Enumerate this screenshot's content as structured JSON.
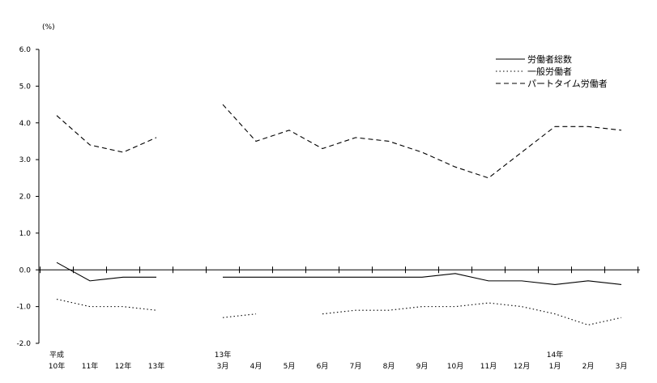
{
  "chart_data": {
    "type": "line",
    "ylabel": "(%)",
    "ylim": [
      -2.0,
      6.0
    ],
    "yticks": [
      "6.0",
      "5.0",
      "4.0",
      "3.0",
      "2.0",
      "1.0",
      "0.0",
      "-1.0",
      "-2.0"
    ],
    "categories": [
      {
        "top": "平成",
        "bottom": "10年"
      },
      {
        "top": "",
        "bottom": "11年"
      },
      {
        "top": "",
        "bottom": "12年"
      },
      {
        "top": "",
        "bottom": "13年"
      },
      {
        "top": "",
        "bottom": ""
      },
      {
        "top": "13年",
        "bottom": "3月"
      },
      {
        "top": "",
        "bottom": "4月"
      },
      {
        "top": "",
        "bottom": "5月"
      },
      {
        "top": "",
        "bottom": "6月"
      },
      {
        "top": "",
        "bottom": "7月"
      },
      {
        "top": "",
        "bottom": "8月"
      },
      {
        "top": "",
        "bottom": "9月"
      },
      {
        "top": "",
        "bottom": "10月"
      },
      {
        "top": "",
        "bottom": "11月"
      },
      {
        "top": "",
        "bottom": "12月"
      },
      {
        "top": "14年",
        "bottom": "1月"
      },
      {
        "top": "",
        "bottom": "2月"
      },
      {
        "top": "",
        "bottom": "3月"
      }
    ],
    "series": [
      {
        "name": "労働者総数",
        "style": "solid",
        "values": [
          0.2,
          -0.3,
          -0.2,
          -0.2,
          null,
          -0.2,
          -0.2,
          -0.2,
          -0.2,
          -0.2,
          -0.2,
          -0.2,
          -0.1,
          -0.3,
          -0.3,
          -0.4,
          -0.3,
          -0.4
        ]
      },
      {
        "name": "一般労働者",
        "style": "dotted",
        "values": [
          -0.8,
          -1.0,
          -1.0,
          -1.1,
          null,
          -1.3,
          -1.2,
          null,
          -1.2,
          -1.1,
          -1.1,
          -1.0,
          -1.0,
          -0.9,
          -1.0,
          -1.2,
          -1.5,
          -1.3
        ]
      },
      {
        "name": "パートタイム労働者",
        "style": "dashed",
        "values": [
          4.2,
          3.4,
          3.2,
          3.6,
          null,
          4.5,
          3.5,
          3.8,
          3.3,
          3.6,
          3.5,
          3.2,
          2.8,
          2.5,
          3.2,
          3.9,
          3.9,
          3.8
        ]
      }
    ],
    "legend_position": "top-right",
    "grid": false
  }
}
